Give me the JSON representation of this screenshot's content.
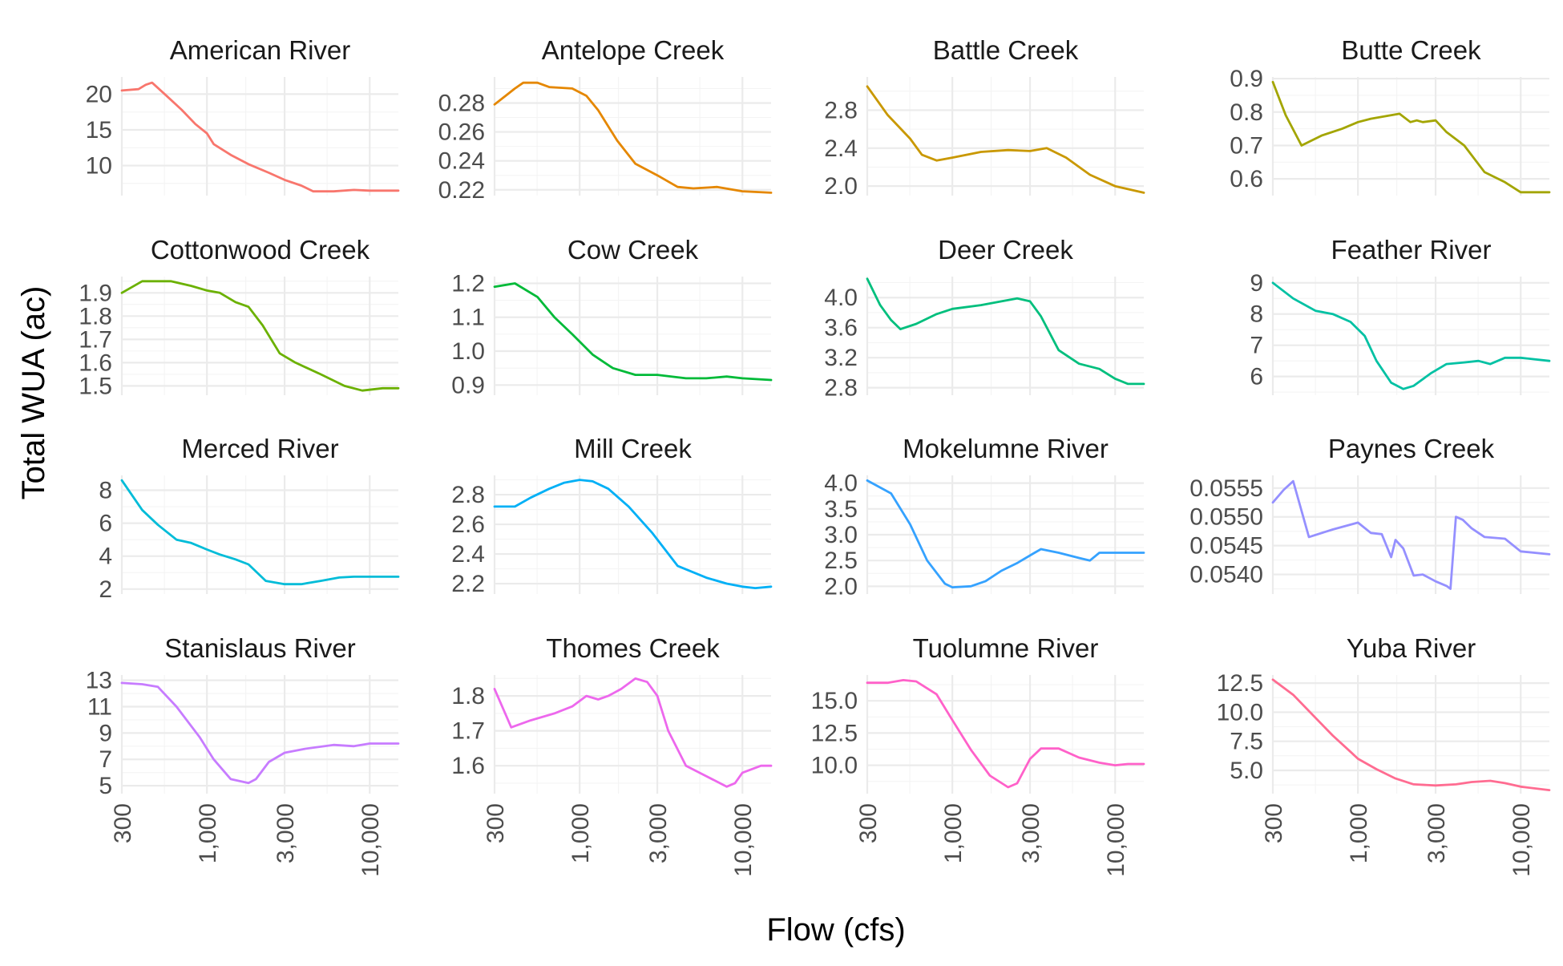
{
  "chart_data": {
    "type": "line",
    "layout": "facet-grid-4x4",
    "xlabel": "Flow (cfs)",
    "ylabel": "Total WUA (ac)",
    "x_scale": "log10",
    "xlim": [
      300,
      15000
    ],
    "x_ticks": [
      300,
      1000,
      3000,
      10000
    ],
    "x_tick_labels": [
      "300",
      "1,000",
      "3,000",
      "10,000"
    ],
    "grid": true,
    "scales": "free_y",
    "panels": [
      {
        "name": "American River",
        "color": "#F8766D",
        "ylim": [
          5.8,
          22.4
        ],
        "y_ticks": [
          10,
          15,
          20
        ],
        "y_tick_labels": [
          "10",
          "15",
          "20"
        ],
        "x": [
          300,
          380,
          420,
          460,
          550,
          700,
          850,
          1000,
          1100,
          1400,
          1800,
          2400,
          3000,
          3800,
          4500,
          6000,
          8000,
          10000,
          15000
        ],
        "y": [
          20.5,
          20.7,
          21.3,
          21.6,
          20.0,
          17.8,
          15.8,
          14.5,
          13.0,
          11.5,
          10.2,
          9.0,
          8.0,
          7.2,
          6.4,
          6.4,
          6.6,
          6.5,
          6.5
        ]
      },
      {
        "name": "Antelope Creek",
        "color": "#E58700",
        "ylim": [
          0.216,
          0.298
        ],
        "y_ticks": [
          0.22,
          0.24,
          0.26,
          0.28
        ],
        "y_tick_labels": [
          "0.22",
          "0.24",
          "0.26",
          "0.28"
        ],
        "x": [
          300,
          400,
          450,
          550,
          650,
          900,
          1100,
          1300,
          1700,
          2200,
          3000,
          4000,
          5000,
          7000,
          10000,
          15000
        ],
        "y": [
          0.279,
          0.29,
          0.294,
          0.294,
          0.291,
          0.29,
          0.285,
          0.275,
          0.254,
          0.238,
          0.23,
          0.222,
          0.221,
          0.222,
          0.219,
          0.218
        ]
      },
      {
        "name": "Battle Creek",
        "color": "#C99800",
        "ylim": [
          1.9,
          3.15
        ],
        "y_ticks": [
          2.0,
          2.4,
          2.8
        ],
        "y_tick_labels": [
          "2.0",
          "2.4",
          "2.8"
        ],
        "x": [
          300,
          400,
          550,
          650,
          800,
          1000,
          1500,
          2200,
          3000,
          3800,
          5000,
          7000,
          10000,
          15000
        ],
        "y": [
          3.05,
          2.75,
          2.5,
          2.33,
          2.27,
          2.3,
          2.36,
          2.38,
          2.37,
          2.4,
          2.3,
          2.12,
          2.0,
          1.93
        ]
      },
      {
        "name": "Butte Creek",
        "color": "#A3A500",
        "ylim": [
          0.55,
          0.905
        ],
        "y_ticks": [
          0.6,
          0.7,
          0.8,
          0.9
        ],
        "y_tick_labels": [
          "0.6",
          "0.7",
          "0.8",
          "0.9"
        ],
        "x": [
          300,
          360,
          450,
          600,
          800,
          1000,
          1200,
          1800,
          2100,
          2300,
          2500,
          3000,
          3500,
          4500,
          6000,
          8000,
          10000,
          15000
        ],
        "y": [
          0.89,
          0.79,
          0.7,
          0.73,
          0.75,
          0.77,
          0.78,
          0.795,
          0.77,
          0.775,
          0.77,
          0.775,
          0.74,
          0.7,
          0.62,
          0.59,
          0.56,
          0.56
        ]
      },
      {
        "name": "Cottonwood Creek",
        "color": "#6BB100",
        "ylim": [
          1.46,
          1.97
        ],
        "y_ticks": [
          1.5,
          1.6,
          1.7,
          1.8,
          1.9
        ],
        "y_tick_labels": [
          "1.5",
          "1.6",
          "1.7",
          "1.8",
          "1.9"
        ],
        "x": [
          300,
          400,
          600,
          800,
          1000,
          1200,
          1500,
          1800,
          2200,
          2800,
          3500,
          5000,
          7000,
          9000,
          12000,
          15000
        ],
        "y": [
          1.9,
          1.95,
          1.95,
          1.93,
          1.91,
          1.9,
          1.86,
          1.84,
          1.76,
          1.64,
          1.6,
          1.55,
          1.5,
          1.48,
          1.49,
          1.49
        ]
      },
      {
        "name": "Cow Creek",
        "color": "#00BA38",
        "ylim": [
          0.87,
          1.22
        ],
        "y_ticks": [
          0.9,
          1.0,
          1.1,
          1.2
        ],
        "y_tick_labels": [
          "0.9",
          "1.0",
          "1.1",
          "1.2"
        ],
        "x": [
          300,
          400,
          550,
          700,
          900,
          1200,
          1600,
          2200,
          3000,
          4500,
          6000,
          8000,
          10000,
          15000
        ],
        "y": [
          1.19,
          1.2,
          1.16,
          1.1,
          1.05,
          0.99,
          0.95,
          0.93,
          0.93,
          0.92,
          0.92,
          0.925,
          0.92,
          0.915
        ]
      },
      {
        "name": "Deer Creek",
        "color": "#00BF7D",
        "ylim": [
          2.7,
          4.28
        ],
        "y_ticks": [
          2.8,
          3.2,
          3.6,
          4.0
        ],
        "y_tick_labels": [
          "2.8",
          "3.2",
          "3.6",
          "4.0"
        ],
        "x": [
          300,
          360,
          420,
          480,
          600,
          800,
          1000,
          1500,
          2000,
          2500,
          3000,
          3500,
          4500,
          6000,
          8000,
          10000,
          12000,
          15000
        ],
        "y": [
          4.25,
          3.9,
          3.7,
          3.58,
          3.65,
          3.78,
          3.85,
          3.9,
          3.95,
          3.99,
          3.95,
          3.75,
          3.3,
          3.12,
          3.05,
          2.92,
          2.85,
          2.85
        ]
      },
      {
        "name": "Feather River",
        "color": "#00C1A3",
        "ylim": [
          5.4,
          9.2
        ],
        "y_ticks": [
          6,
          7,
          8,
          9
        ],
        "y_tick_labels": [
          "6",
          "7",
          "8",
          "9"
        ],
        "x": [
          300,
          400,
          550,
          700,
          900,
          1100,
          1300,
          1600,
          1900,
          2200,
          2800,
          3500,
          4500,
          5500,
          6500,
          8000,
          10000,
          15000
        ],
        "y": [
          9.0,
          8.5,
          8.1,
          8.0,
          7.75,
          7.3,
          6.5,
          5.8,
          5.6,
          5.7,
          6.1,
          6.4,
          6.45,
          6.5,
          6.4,
          6.6,
          6.6,
          6.5
        ]
      },
      {
        "name": "Merced River",
        "color": "#00BCD8",
        "ylim": [
          1.7,
          8.9
        ],
        "y_ticks": [
          2,
          4,
          6,
          8
        ],
        "y_tick_labels": [
          "2",
          "4",
          "6",
          "8"
        ],
        "x": [
          300,
          400,
          500,
          650,
          800,
          1000,
          1200,
          1500,
          1800,
          2300,
          3000,
          3800,
          5000,
          6500,
          8000,
          10000,
          15000
        ],
        "y": [
          8.6,
          6.8,
          5.9,
          5.0,
          4.8,
          4.4,
          4.1,
          3.8,
          3.5,
          2.5,
          2.3,
          2.3,
          2.5,
          2.7,
          2.75,
          2.75,
          2.75
        ]
      },
      {
        "name": "Mill Creek",
        "color": "#00B0F6",
        "ylim": [
          2.13,
          2.93
        ],
        "y_ticks": [
          2.2,
          2.4,
          2.6,
          2.8
        ],
        "y_tick_labels": [
          "2.2",
          "2.4",
          "2.6",
          "2.8"
        ],
        "x": [
          300,
          400,
          500,
          650,
          800,
          1000,
          1200,
          1500,
          2000,
          2800,
          4000,
          6000,
          8000,
          10000,
          12000,
          15000
        ],
        "y": [
          2.72,
          2.72,
          2.78,
          2.84,
          2.88,
          2.9,
          2.89,
          2.84,
          2.72,
          2.54,
          2.32,
          2.24,
          2.2,
          2.18,
          2.17,
          2.18
        ]
      },
      {
        "name": "Mokelumne River",
        "color": "#35A2FF",
        "ylim": [
          1.85,
          4.15
        ],
        "y_ticks": [
          2.0,
          2.5,
          3.0,
          3.5,
          4.0
        ],
        "y_tick_labels": [
          "2.0",
          "2.5",
          "3.0",
          "3.5",
          "4.0"
        ],
        "x": [
          300,
          420,
          550,
          700,
          900,
          1000,
          1300,
          1600,
          2000,
          2500,
          3200,
          3500,
          4500,
          6000,
          7000,
          8000,
          10000,
          15000
        ],
        "y": [
          4.05,
          3.8,
          3.2,
          2.5,
          2.05,
          1.98,
          2.0,
          2.1,
          2.3,
          2.45,
          2.65,
          2.72,
          2.65,
          2.55,
          2.5,
          2.65,
          2.65,
          2.65
        ]
      },
      {
        "name": "Paynes Creek",
        "color": "#9590FF",
        "ylim": [
          0.05366,
          0.05572
        ],
        "y_ticks": [
          0.054,
          0.0545,
          0.055,
          0.0555
        ],
        "y_tick_labels": [
          "0.0540",
          "0.0545",
          "0.0550",
          "0.0555"
        ],
        "x": [
          300,
          350,
          400,
          500,
          700,
          1000,
          1200,
          1400,
          1600,
          1700,
          1900,
          2200,
          2500,
          3000,
          3500,
          3700,
          4000,
          4400,
          5000,
          6000,
          8000,
          10000,
          15000
        ],
        "y": [
          0.05525,
          0.05547,
          0.05562,
          0.05465,
          0.05478,
          0.0549,
          0.05472,
          0.0547,
          0.0543,
          0.0546,
          0.05445,
          0.05398,
          0.054,
          0.05388,
          0.0538,
          0.05375,
          0.055,
          0.05495,
          0.0548,
          0.05465,
          0.05462,
          0.0544,
          0.05435
        ]
      },
      {
        "name": "Stanislaus River",
        "color": "#C77CFF",
        "ylim": [
          4.4,
          13.4
        ],
        "y_ticks": [
          5,
          7,
          9,
          11,
          13
        ],
        "y_tick_labels": [
          "5",
          "7",
          "9",
          "11",
          "13"
        ],
        "x": [
          300,
          400,
          500,
          650,
          900,
          1100,
          1400,
          1800,
          2000,
          2400,
          3000,
          4000,
          6000,
          8000,
          10000,
          15000
        ],
        "y": [
          12.8,
          12.7,
          12.5,
          11.0,
          8.7,
          7.0,
          5.5,
          5.2,
          5.5,
          6.8,
          7.5,
          7.8,
          8.1,
          8.0,
          8.2,
          8.2
        ]
      },
      {
        "name": "Thomes Creek",
        "color": "#ED68ED",
        "ylim": [
          1.52,
          1.86
        ],
        "y_ticks": [
          1.6,
          1.7,
          1.8
        ],
        "y_tick_labels": [
          "1.6",
          "1.7",
          "1.8"
        ],
        "x": [
          300,
          380,
          500,
          700,
          900,
          1100,
          1300,
          1500,
          1800,
          2200,
          2600,
          3000,
          3500,
          4500,
          6000,
          8000,
          9000,
          10000,
          13000,
          15000
        ],
        "y": [
          1.82,
          1.71,
          1.73,
          1.75,
          1.77,
          1.8,
          1.79,
          1.8,
          1.82,
          1.85,
          1.84,
          1.8,
          1.7,
          1.6,
          1.57,
          1.54,
          1.55,
          1.58,
          1.6,
          1.6
        ]
      },
      {
        "name": "Tuolumne River",
        "color": "#FF61C9",
        "ylim": [
          7.8,
          17.0
        ],
        "y_ticks": [
          10.0,
          12.5,
          15.0
        ],
        "y_tick_labels": [
          "10.0",
          "12.5",
          "15.0"
        ],
        "x": [
          300,
          400,
          500,
          600,
          800,
          1000,
          1300,
          1700,
          2200,
          2500,
          3000,
          3500,
          4500,
          6000,
          8000,
          10000,
          12000,
          15000
        ],
        "y": [
          16.4,
          16.4,
          16.6,
          16.5,
          15.5,
          13.5,
          11.2,
          9.2,
          8.3,
          8.6,
          10.5,
          11.3,
          11.3,
          10.6,
          10.2,
          10.0,
          10.1,
          10.1
        ]
      },
      {
        "name": "Yuba River",
        "color": "#FF6C91",
        "ylim": [
          3.0,
          13.2
        ],
        "y_ticks": [
          5.0,
          7.5,
          10.0,
          12.5
        ],
        "y_tick_labels": [
          "5.0",
          "7.5",
          "10.0",
          "12.5"
        ],
        "x": [
          300,
          400,
          550,
          700,
          900,
          1000,
          1300,
          1700,
          2200,
          3000,
          4000,
          5000,
          6500,
          8000,
          10000,
          15000
        ],
        "y": [
          12.8,
          11.5,
          9.5,
          8.0,
          6.6,
          6.0,
          5.1,
          4.3,
          3.8,
          3.7,
          3.8,
          4.0,
          4.1,
          3.9,
          3.6,
          3.3
        ]
      }
    ]
  }
}
